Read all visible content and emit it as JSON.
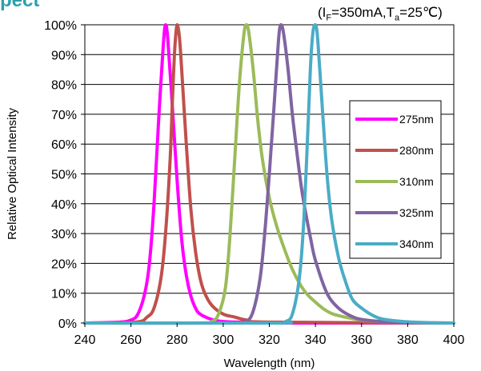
{
  "heading": "pect",
  "conditions": {
    "prefix": "(I",
    "sub1": "F",
    "middle": "=350mA,T",
    "sub2": "a",
    "suffix": "=25℃)"
  },
  "chart_data": {
    "type": "line",
    "title": "",
    "xlabel": "Wavelength (nm)",
    "ylabel": "Relative Optical Intensity",
    "xlim": [
      240,
      400
    ],
    "ylim": [
      0,
      100
    ],
    "x_ticks": [
      240,
      260,
      280,
      300,
      320,
      340,
      360,
      380,
      400
    ],
    "x_tick_labels": [
      "240",
      "260",
      "280",
      "300",
      "320",
      "340",
      "360",
      "380",
      "400"
    ],
    "y_ticks": [
      0,
      10,
      20,
      30,
      40,
      50,
      60,
      70,
      80,
      90,
      100
    ],
    "y_tick_labels": [
      "0%",
      "10%",
      "20%",
      "30%",
      "40%",
      "50%",
      "60%",
      "70%",
      "80%",
      "90%",
      "100%"
    ],
    "grid": "horizontal",
    "legend_position": "right",
    "series": [
      {
        "name": "275nm",
        "color": "#ff00ff",
        "x": [
          240,
          255,
          260,
          263,
          266,
          268,
          270,
          272,
          274,
          275,
          276,
          278,
          280,
          282,
          284,
          286,
          288,
          290,
          295,
          300,
          310,
          320,
          400
        ],
        "y": [
          0,
          0.3,
          1,
          3,
          10,
          20,
          40,
          68,
          93,
          100,
          95,
          72,
          48,
          28,
          16,
          9,
          5,
          3,
          1.2,
          0.5,
          0.2,
          0,
          0
        ]
      },
      {
        "name": "280nm",
        "color": "#c0504d",
        "x": [
          240,
          262,
          267,
          270,
          273,
          275,
          277,
          278,
          279,
          280,
          281,
          282,
          284,
          286,
          288,
          290,
          292,
          295,
          300,
          305,
          310,
          320,
          400
        ],
        "y": [
          0,
          0.3,
          2,
          5,
          15,
          30,
          55,
          75,
          92,
          100,
          96,
          85,
          60,
          38,
          24,
          15,
          10,
          6,
          3,
          2,
          1,
          0.3,
          0
        ]
      },
      {
        "name": "310nm",
        "color": "#9bbb59",
        "x": [
          240,
          290,
          295,
          298,
          301,
          303,
          305,
          307,
          309,
          310,
          311,
          313,
          315,
          317,
          320,
          323,
          326,
          330,
          335,
          340,
          345,
          350,
          360,
          370,
          380,
          400
        ],
        "y": [
          0,
          0,
          0.5,
          3,
          12,
          30,
          55,
          80,
          97,
          100,
          98,
          85,
          68,
          55,
          42,
          33,
          26,
          18,
          11,
          7,
          4,
          2.5,
          1,
          0.4,
          0.1,
          0
        ]
      },
      {
        "name": "325nm",
        "color": "#8064a2",
        "x": [
          240,
          305,
          310,
          313,
          316,
          318,
          320,
          322,
          324,
          325,
          326,
          328,
          330,
          332,
          334,
          336,
          338,
          340,
          345,
          350,
          355,
          360,
          370,
          380,
          400
        ],
        "y": [
          0,
          0,
          0.5,
          4,
          15,
          30,
          50,
          72,
          95,
          100,
          98,
          86,
          70,
          57,
          45,
          36,
          28,
          21,
          10,
          5,
          2.5,
          1.2,
          0.4,
          0.1,
          0
        ]
      },
      {
        "name": "340nm",
        "color": "#4bacc6",
        "x": [
          240,
          322,
          327,
          330,
          333,
          335,
          337,
          338,
          339,
          340,
          341,
          343,
          345,
          347,
          350,
          353,
          356,
          360,
          365,
          370,
          380,
          390,
          400
        ],
        "y": [
          0,
          0,
          0.5,
          3,
          15,
          35,
          70,
          88,
          98,
          100,
          95,
          72,
          50,
          35,
          22,
          14,
          8,
          5,
          2.5,
          1.2,
          0.4,
          0.1,
          0
        ]
      }
    ]
  }
}
